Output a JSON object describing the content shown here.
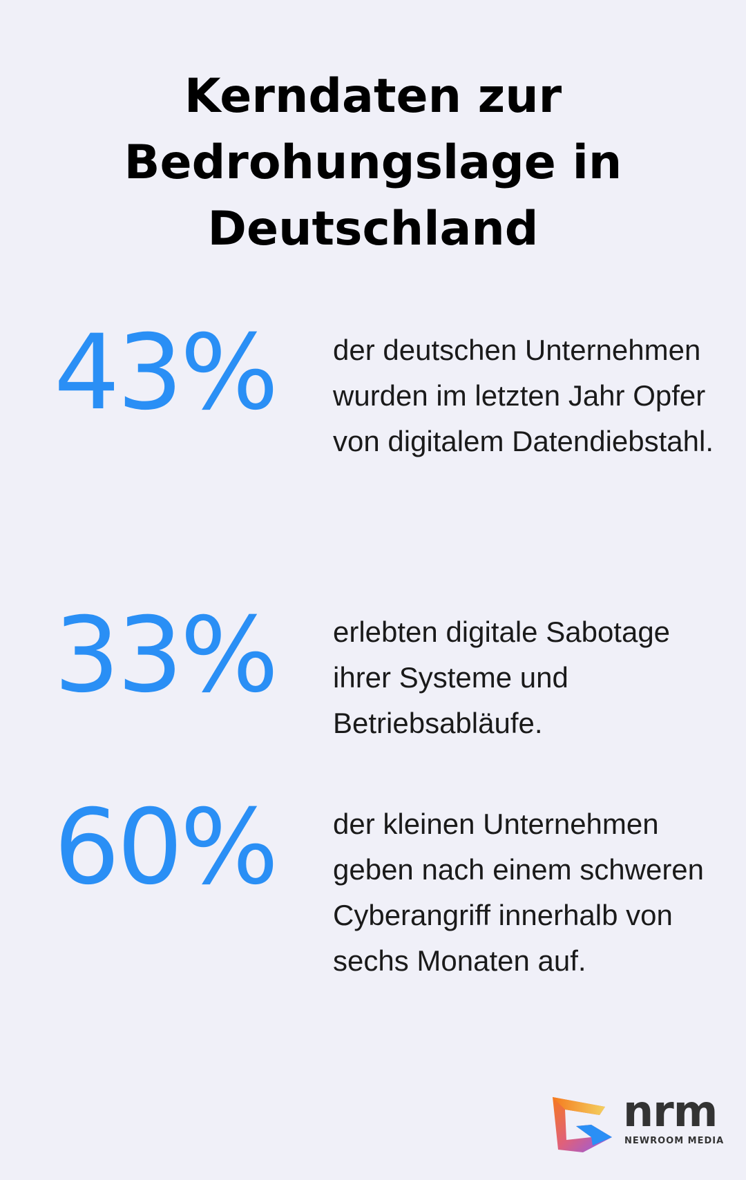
{
  "title": [
    "Kerndaten zur",
    "Bedrohungslage in",
    "Deutschland"
  ],
  "accent_color": "#2a8ff5",
  "stats": [
    {
      "value": "43%",
      "text": "der deutschen Unternehmen wurden im letzten Jahr Opfer von digitalem Datendiebstahl."
    },
    {
      "value": "33%",
      "text": "erlebten digitale Sabotage ihrer Systeme und Betriebsabläufe."
    },
    {
      "value": "60%",
      "text": "der kleinen Unternehmen geben nach einem schweren Cyberangriff innerhalb von sechs Monaten auf."
    }
  ],
  "logo": {
    "name": "nrm",
    "subtitle": "NEWROOM MEDIA"
  }
}
